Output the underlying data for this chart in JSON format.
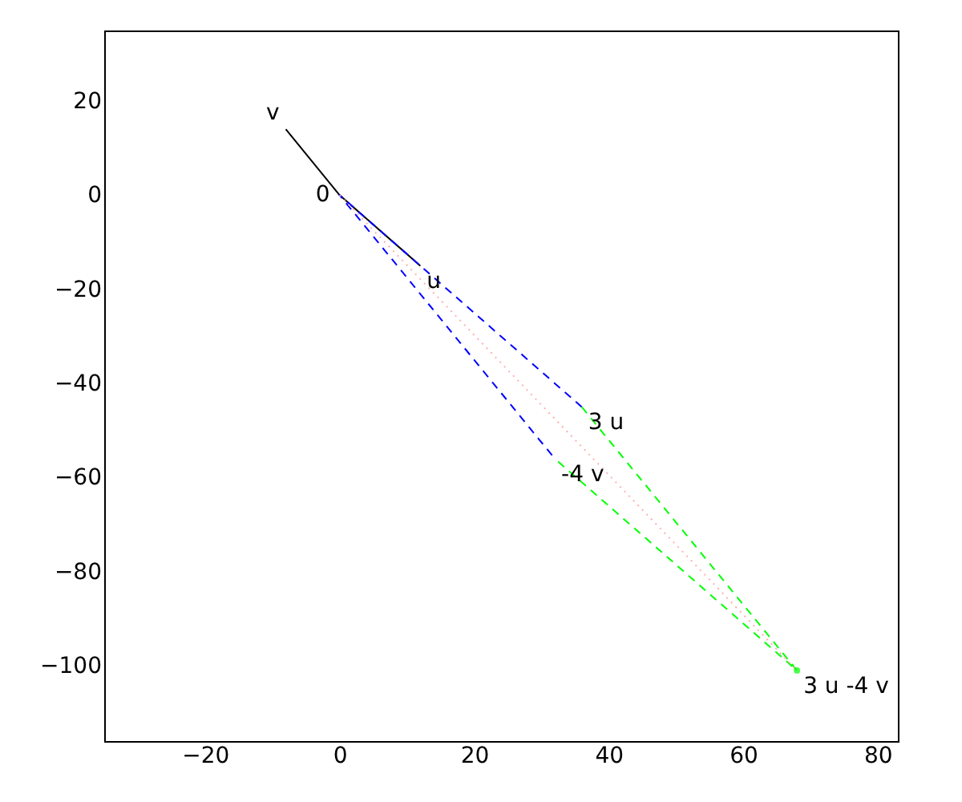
{
  "chart_data": {
    "type": "line",
    "xlim": [
      -35,
      83
    ],
    "ylim": [
      -116,
      35
    ],
    "xticks": [
      -20,
      0,
      20,
      40,
      60,
      80
    ],
    "yticks": [
      -100,
      -80,
      -60,
      -40,
      -20,
      0,
      20
    ],
    "grid": false,
    "series": [
      {
        "color": "#000000",
        "line_style": "solid",
        "x": [
          -8,
          0,
          12
        ],
        "values": [
          14,
          0,
          -15
        ]
      },
      {
        "color": "#0000ff",
        "line_style": "dashed",
        "x": [
          36,
          0,
          32
        ],
        "values": [
          -45,
          0,
          -56
        ]
      },
      {
        "color": "#00ff00",
        "line_style": "dashed",
        "x": [
          36,
          68,
          32
        ],
        "values": [
          -45,
          -101,
          -56
        ]
      },
      {
        "color": "#ffb0b0",
        "line_style": "dotted",
        "x": [
          0,
          68
        ],
        "values": [
          0,
          -101
        ]
      },
      {
        "type": "scatter",
        "marker": "circle",
        "color": "#00ff00",
        "x": [
          68
        ],
        "values": [
          -101
        ]
      }
    ],
    "annotations": [
      {
        "text": "0",
        "x": 0,
        "y": 0
      },
      {
        "text": "u",
        "x": 12,
        "y": -15
      },
      {
        "text": "v",
        "x": -8,
        "y": 14
      },
      {
        "text": "3 u",
        "x": 36,
        "y": -45
      },
      {
        "text": "-4 v",
        "x": 32,
        "y": -56
      },
      {
        "text": "3 u -4 v",
        "x": 68,
        "y": -101
      }
    ]
  }
}
